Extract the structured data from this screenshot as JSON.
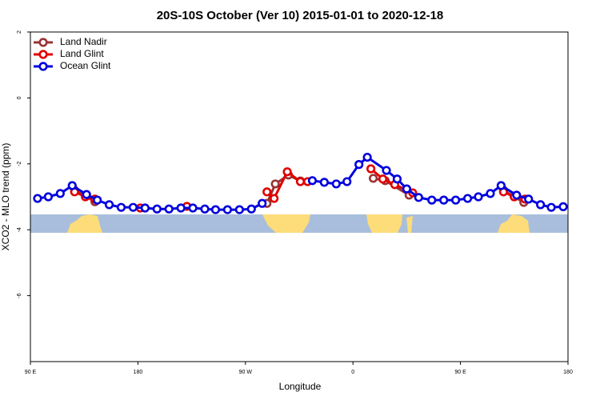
{
  "chart_data": {
    "type": "line",
    "title": "20S-10S October (Ver 10)   2015-01-01 to 2020-12-18",
    "xlabel": "Longitude",
    "ylabel": "XCO2 - MLO trend (ppm)",
    "xlim": [
      90,
      540
    ],
    "xticks": [
      {
        "value": 90,
        "label": "90 E"
      },
      {
        "value": 180,
        "label": "180"
      },
      {
        "value": 270,
        "label": "90 W"
      },
      {
        "value": 360,
        "label": "0"
      },
      {
        "value": 450,
        "label": "90 E"
      },
      {
        "value": 540,
        "label": "180"
      }
    ],
    "ylim": [
      -8,
      2
    ],
    "yticks": [
      -6,
      -4,
      -2,
      0,
      2
    ],
    "legend": "top-left",
    "series": [
      {
        "name": "Land Nadir",
        "color": "#993333",
        "x": [
          127,
          136,
          144,
          null,
          288,
          295,
          306,
          316,
          null,
          377,
          387,
          407,
          null,
          486,
          495,
          503
        ],
        "values": [
          -2.8,
          -2.98,
          -3.15,
          null,
          -3.2,
          -2.61,
          -2.34,
          -2.52,
          null,
          -2.44,
          -2.51,
          -2.95,
          null,
          -2.8,
          -3.0,
          -3.17
        ]
      },
      {
        "name": "Land Glint",
        "color": "#e00000",
        "x": [
          127,
          136,
          144,
          null,
          182,
          null,
          221,
          null,
          288,
          294,
          305,
          316,
          322,
          null,
          375,
          385,
          395,
          410,
          null,
          486,
          495,
          504
        ],
        "values": [
          -2.85,
          -3.0,
          -3.07,
          null,
          -3.34,
          null,
          -3.29,
          null,
          -2.85,
          -3.05,
          -2.24,
          -2.54,
          -2.54,
          null,
          -2.15,
          -2.46,
          -2.63,
          -2.88,
          null,
          -2.85,
          -3.0,
          -3.07
        ]
      },
      {
        "name": "Ocean Glint",
        "color": "#0000dd",
        "x": [
          96,
          105,
          115,
          125,
          137,
          146,
          156,
          166,
          176,
          186,
          196,
          206,
          216,
          226,
          236,
          245,
          255,
          265,
          275,
          284,
          null,
          326,
          336,
          346,
          355,
          365,
          372,
          388,
          397,
          405,
          415,
          426,
          436,
          446,
          456,
          465,
          475,
          484,
          497,
          507,
          517,
          526,
          536
        ],
        "values": [
          -3.05,
          -3.0,
          -2.9,
          -2.66,
          -2.93,
          -3.1,
          -3.24,
          -3.32,
          -3.32,
          -3.34,
          -3.37,
          -3.37,
          -3.34,
          -3.34,
          -3.37,
          -3.39,
          -3.39,
          -3.39,
          -3.37,
          -3.2,
          null,
          -2.51,
          -2.56,
          -2.61,
          -2.54,
          -2.02,
          -1.8,
          -2.2,
          -2.46,
          -2.76,
          -3.02,
          -3.1,
          -3.1,
          -3.1,
          -3.05,
          -3.0,
          -2.9,
          -2.66,
          -2.95,
          -3.07,
          -3.24,
          -3.32,
          -3.3
        ]
      }
    ]
  }
}
